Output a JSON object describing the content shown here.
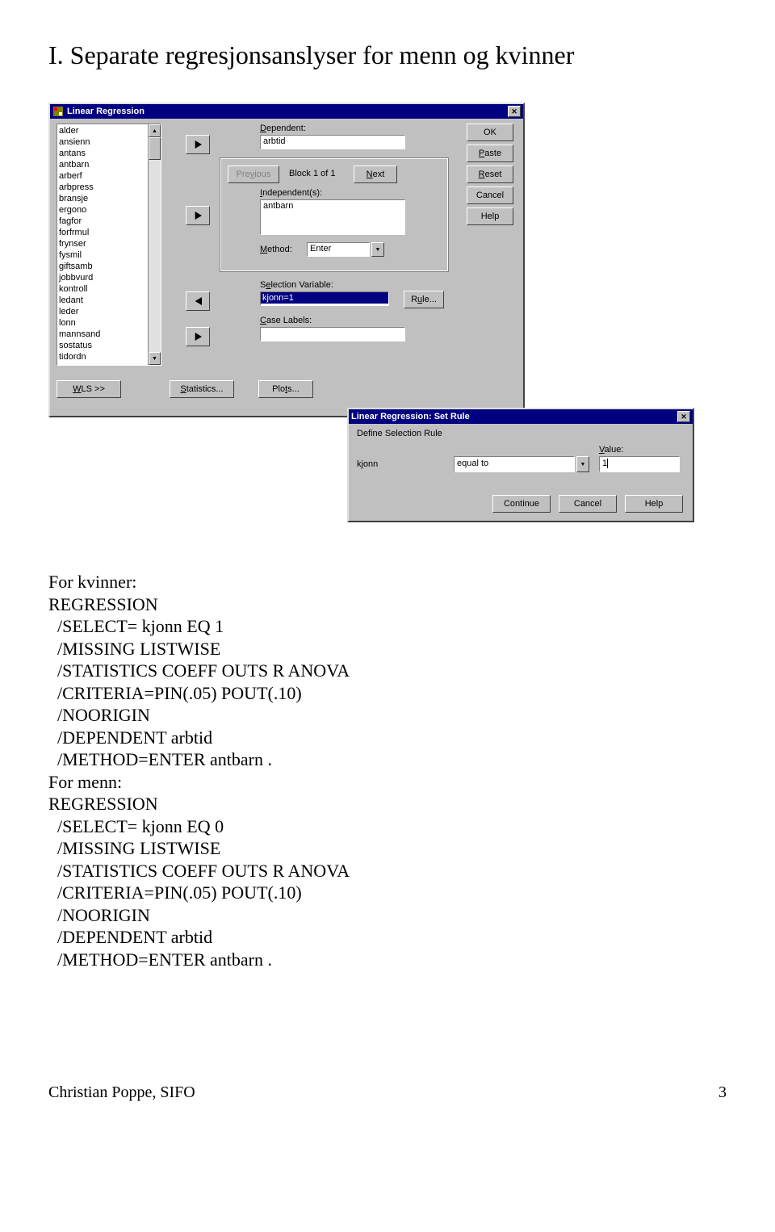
{
  "page": {
    "title": "I.   Separate regresjonsanslyser for menn og kvinner",
    "footer_left": "Christian Poppe, SIFO",
    "footer_page": "3"
  },
  "code": {
    "kvinner_header": "For kvinner:",
    "menn_header": "For menn:",
    "lines_kvinner": [
      "REGRESSION",
      "  /SELECT= kjonn EQ 1",
      "  /MISSING LISTWISE",
      "  /STATISTICS COEFF OUTS R ANOVA",
      "  /CRITERIA=PIN(.05) POUT(.10)",
      "  /NOORIGIN",
      "  /DEPENDENT arbtid",
      "  /METHOD=ENTER antbarn ."
    ],
    "lines_menn": [
      "REGRESSION",
      "  /SELECT= kjonn EQ 0",
      "  /MISSING LISTWISE",
      "  /STATISTICS COEFF OUTS R ANOVA",
      "  /CRITERIA=PIN(.05) POUT(.10)",
      "  /NOORIGIN",
      "  /DEPENDENT arbtid",
      "  /METHOD=ENTER antbarn ."
    ]
  },
  "lr_dialog": {
    "title": "Linear Regression",
    "var_list": [
      "alder",
      "ansienn",
      "antans",
      "antbarn",
      "arberf",
      "arbpress",
      "bransje",
      "ergono",
      "fagfor",
      "forfrmul",
      "frynser",
      "fysmil",
      "giftsamb",
      "jobbvurd",
      "kontroll",
      "ledant",
      "leder",
      "lonn",
      "mannsand",
      "sostatus",
      "tidordn"
    ],
    "dependent_label": "Dependent:",
    "dependent_value": "arbtid",
    "block_label": "Block 1 of 1",
    "previous": "Previous",
    "next": "Next",
    "independent_label": "Independent(s):",
    "independent_value": "antbarn",
    "method_label": "Method:",
    "method_value": "Enter",
    "selection_label": "Selection Variable:",
    "selection_value": "kjonn=1",
    "rule_btn": "Rule...",
    "case_labels": "Case Labels:",
    "buttons": {
      "ok": "OK",
      "paste": "Paste",
      "reset": "Reset",
      "cancel": "Cancel",
      "help": "Help"
    },
    "bottom": {
      "wls": "WLS >>",
      "stats": "Statistics...",
      "plots": "Plots..."
    }
  },
  "rule_dialog": {
    "title": "Linear Regression: Set Rule",
    "header": "Define Selection Rule",
    "var": "kjonn",
    "op": "equal to",
    "value_label": "Value:",
    "value": "1",
    "continue": "Continue",
    "cancel": "Cancel",
    "help": "Help"
  }
}
